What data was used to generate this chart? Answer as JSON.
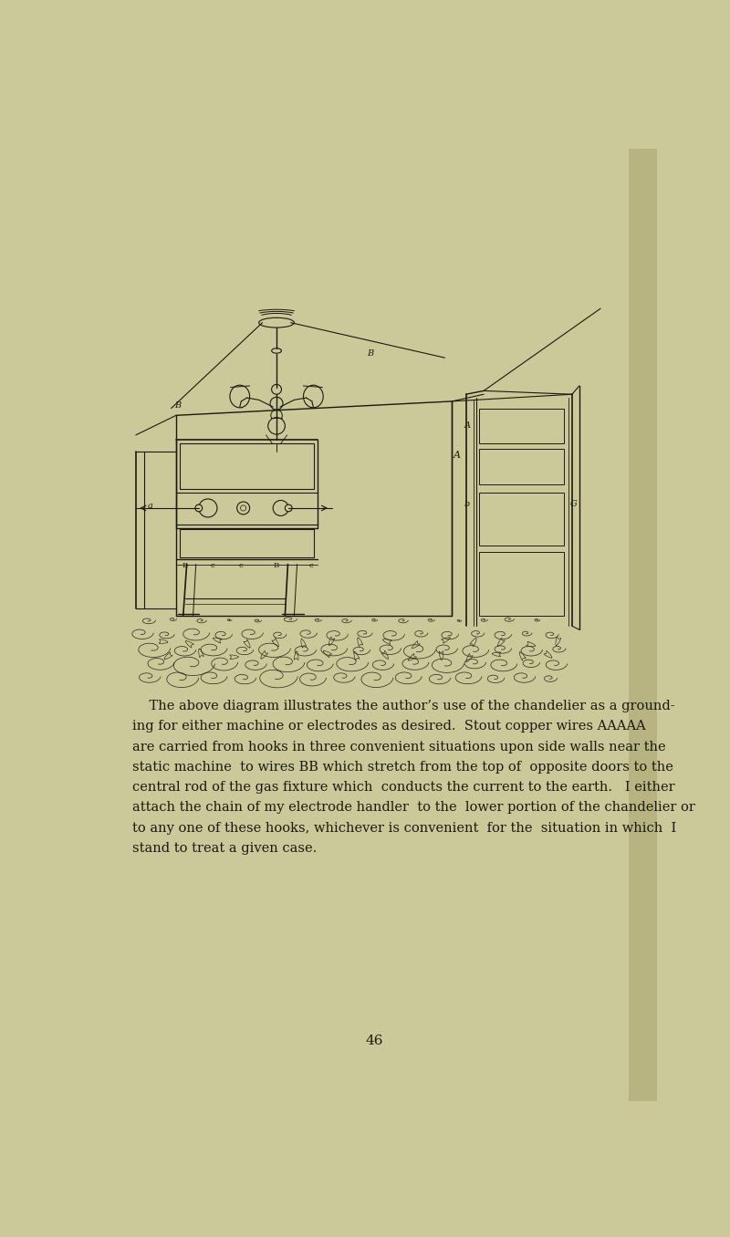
{
  "bg_color": "#cbc99a",
  "line_color": "#1a1a0e",
  "text_color": "#1a1a0e",
  "page_number": "46",
  "fig_width": 8.0,
  "fig_height": 13.56,
  "caption_lines": [
    "    The above diagram illustrates the author’s use of the chandelier as a ground-",
    "ing for either machine or electrodes as desired.  Stout copper wires AAAAA",
    "are carried from hooks in three convenient situations upon side walls near the",
    "static machine  to wires BB which stretch from the top of  opposite doors to the",
    "central rod of the gas fixture which  conducts the current to the earth.   I either",
    "attach the chain of my electrode handler  to the  lower portion of the chandelier or",
    "to any one of these hooks, whichever is convenient  for the  situation in which  I",
    "stand to treat a given case."
  ],
  "caption_italic_words": [
    "AAAAA",
    "BB"
  ]
}
